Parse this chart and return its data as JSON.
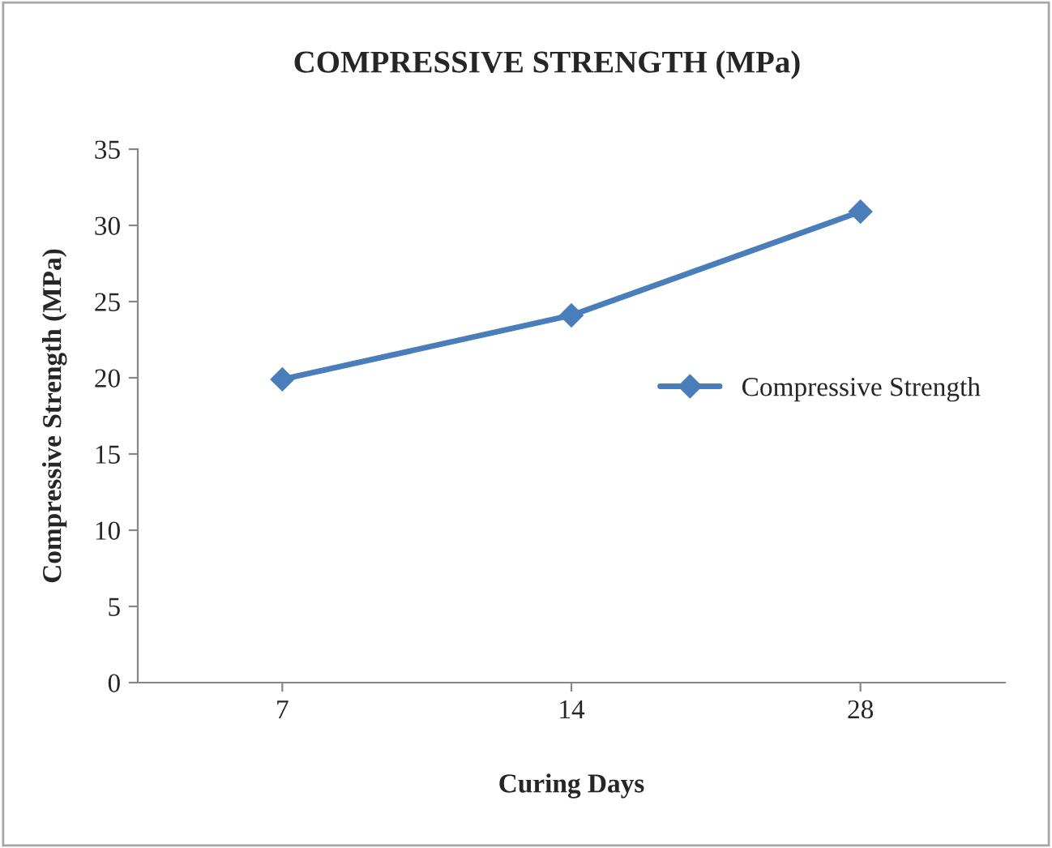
{
  "chart_data": {
    "type": "line",
    "title": "COMPRESSIVE STRENGTH (MPa)",
    "xlabel": "Curing Days",
    "ylabel": "Compressive Strength (MPa)",
    "categories": [
      "7",
      "14",
      "28"
    ],
    "series": [
      {
        "name": "Compressive Strength",
        "color": "#4a7ebb",
        "values": [
          19.9,
          24.1,
          30.9
        ]
      }
    ],
    "ylim": [
      0,
      35
    ],
    "yticks": [
      0,
      5,
      10,
      15,
      20,
      25,
      30,
      35
    ],
    "grid": false,
    "legend": "right",
    "marker": "diamond",
    "line_style": "solid"
  }
}
